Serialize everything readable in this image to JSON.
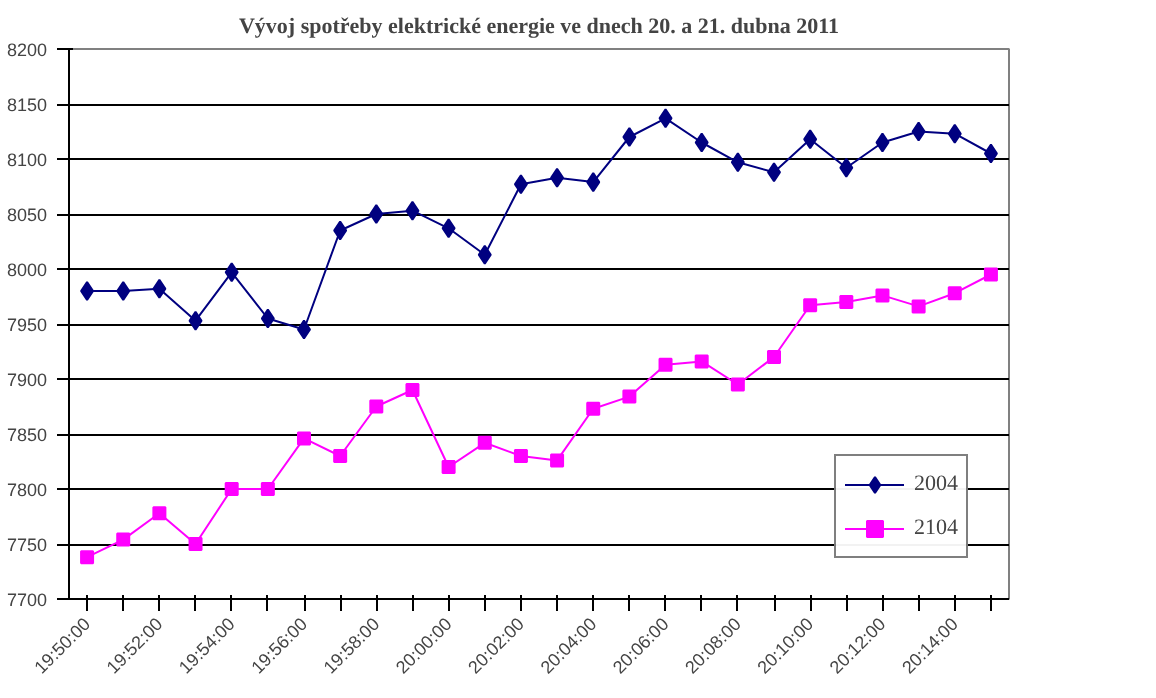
{
  "chart_data": {
    "type": "line",
    "title": "Vývoj spotřeby elektrické energie ve dnech 20. a 21. dubna 2011",
    "categories": [
      "19:50:00",
      null,
      "19:52:00",
      null,
      "19:54:00",
      null,
      "19:56:00",
      null,
      "19:58:00",
      null,
      "20:00:00",
      null,
      "20:02:00",
      null,
      "20:04:00",
      null,
      "20:06:00",
      null,
      "20:08:00",
      null,
      "20:10:00",
      null,
      "20:12:00",
      null,
      "20:14:00",
      null
    ],
    "series": [
      {
        "name": "2004",
        "color": "#000080",
        "marker": "diamond",
        "values": [
          7980,
          7980,
          7982,
          7953,
          7997,
          7955,
          7945,
          8035,
          8050,
          8053,
          8037,
          8013,
          8077,
          8083,
          8079,
          8120,
          8137,
          8115,
          8097,
          8088,
          8118,
          8092,
          8115,
          8125,
          8123,
          8105
        ]
      },
      {
        "name": "2104",
        "color": "#ff00ff",
        "marker": "square",
        "values": [
          7738,
          7754,
          7778,
          7750,
          7800,
          7800,
          7846,
          7830,
          7875,
          7890,
          7820,
          7842,
          7830,
          7826,
          7873,
          7884,
          7913,
          7916,
          7895,
          7920,
          7967,
          7970,
          7976,
          7966,
          7978,
          7995
        ]
      }
    ],
    "ylim": [
      7700,
      8200
    ],
    "yticks": [
      7700,
      7750,
      7800,
      7850,
      7900,
      7950,
      8000,
      8050,
      8100,
      8150,
      8200
    ],
    "grid": "y",
    "legend": "bottom right",
    "line_style": "solid"
  }
}
